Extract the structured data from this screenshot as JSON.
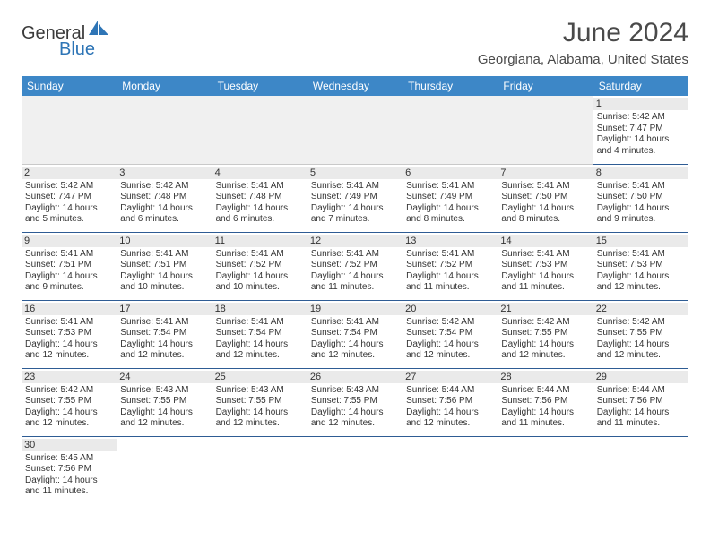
{
  "logo": {
    "general": "General",
    "blue": "Blue"
  },
  "title": "June 2024",
  "location": "Georgiana, Alabama, United States",
  "colors": {
    "header_bg": "#3d87c7",
    "header_fg": "#ffffff",
    "row_border": "#2e5c94",
    "daynum_bg": "#eaeaea",
    "empty_bg": "#f0f0f0",
    "text": "#333333",
    "logo_blue": "#2e75b6"
  },
  "dayNames": [
    "Sunday",
    "Monday",
    "Tuesday",
    "Wednesday",
    "Thursday",
    "Friday",
    "Saturday"
  ],
  "startOffset": 6,
  "daysInMonth": 30,
  "days": {
    "1": {
      "sunrise": "5:42 AM",
      "sunset": "7:47 PM",
      "daylight": "14 hours and 4 minutes."
    },
    "2": {
      "sunrise": "5:42 AM",
      "sunset": "7:47 PM",
      "daylight": "14 hours and 5 minutes."
    },
    "3": {
      "sunrise": "5:42 AM",
      "sunset": "7:48 PM",
      "daylight": "14 hours and 6 minutes."
    },
    "4": {
      "sunrise": "5:41 AM",
      "sunset": "7:48 PM",
      "daylight": "14 hours and 6 minutes."
    },
    "5": {
      "sunrise": "5:41 AM",
      "sunset": "7:49 PM",
      "daylight": "14 hours and 7 minutes."
    },
    "6": {
      "sunrise": "5:41 AM",
      "sunset": "7:49 PM",
      "daylight": "14 hours and 8 minutes."
    },
    "7": {
      "sunrise": "5:41 AM",
      "sunset": "7:50 PM",
      "daylight": "14 hours and 8 minutes."
    },
    "8": {
      "sunrise": "5:41 AM",
      "sunset": "7:50 PM",
      "daylight": "14 hours and 9 minutes."
    },
    "9": {
      "sunrise": "5:41 AM",
      "sunset": "7:51 PM",
      "daylight": "14 hours and 9 minutes."
    },
    "10": {
      "sunrise": "5:41 AM",
      "sunset": "7:51 PM",
      "daylight": "14 hours and 10 minutes."
    },
    "11": {
      "sunrise": "5:41 AM",
      "sunset": "7:52 PM",
      "daylight": "14 hours and 10 minutes."
    },
    "12": {
      "sunrise": "5:41 AM",
      "sunset": "7:52 PM",
      "daylight": "14 hours and 11 minutes."
    },
    "13": {
      "sunrise": "5:41 AM",
      "sunset": "7:52 PM",
      "daylight": "14 hours and 11 minutes."
    },
    "14": {
      "sunrise": "5:41 AM",
      "sunset": "7:53 PM",
      "daylight": "14 hours and 11 minutes."
    },
    "15": {
      "sunrise": "5:41 AM",
      "sunset": "7:53 PM",
      "daylight": "14 hours and 12 minutes."
    },
    "16": {
      "sunrise": "5:41 AM",
      "sunset": "7:53 PM",
      "daylight": "14 hours and 12 minutes."
    },
    "17": {
      "sunrise": "5:41 AM",
      "sunset": "7:54 PM",
      "daylight": "14 hours and 12 minutes."
    },
    "18": {
      "sunrise": "5:41 AM",
      "sunset": "7:54 PM",
      "daylight": "14 hours and 12 minutes."
    },
    "19": {
      "sunrise": "5:41 AM",
      "sunset": "7:54 PM",
      "daylight": "14 hours and 12 minutes."
    },
    "20": {
      "sunrise": "5:42 AM",
      "sunset": "7:54 PM",
      "daylight": "14 hours and 12 minutes."
    },
    "21": {
      "sunrise": "5:42 AM",
      "sunset": "7:55 PM",
      "daylight": "14 hours and 12 minutes."
    },
    "22": {
      "sunrise": "5:42 AM",
      "sunset": "7:55 PM",
      "daylight": "14 hours and 12 minutes."
    },
    "23": {
      "sunrise": "5:42 AM",
      "sunset": "7:55 PM",
      "daylight": "14 hours and 12 minutes."
    },
    "24": {
      "sunrise": "5:43 AM",
      "sunset": "7:55 PM",
      "daylight": "14 hours and 12 minutes."
    },
    "25": {
      "sunrise": "5:43 AM",
      "sunset": "7:55 PM",
      "daylight": "14 hours and 12 minutes."
    },
    "26": {
      "sunrise": "5:43 AM",
      "sunset": "7:55 PM",
      "daylight": "14 hours and 12 minutes."
    },
    "27": {
      "sunrise": "5:44 AM",
      "sunset": "7:56 PM",
      "daylight": "14 hours and 12 minutes."
    },
    "28": {
      "sunrise": "5:44 AM",
      "sunset": "7:56 PM",
      "daylight": "14 hours and 11 minutes."
    },
    "29": {
      "sunrise": "5:44 AM",
      "sunset": "7:56 PM",
      "daylight": "14 hours and 11 minutes."
    },
    "30": {
      "sunrise": "5:45 AM",
      "sunset": "7:56 PM",
      "daylight": "14 hours and 11 minutes."
    }
  },
  "labels": {
    "sunrise": "Sunrise:",
    "sunset": "Sunset:",
    "daylight": "Daylight:"
  }
}
